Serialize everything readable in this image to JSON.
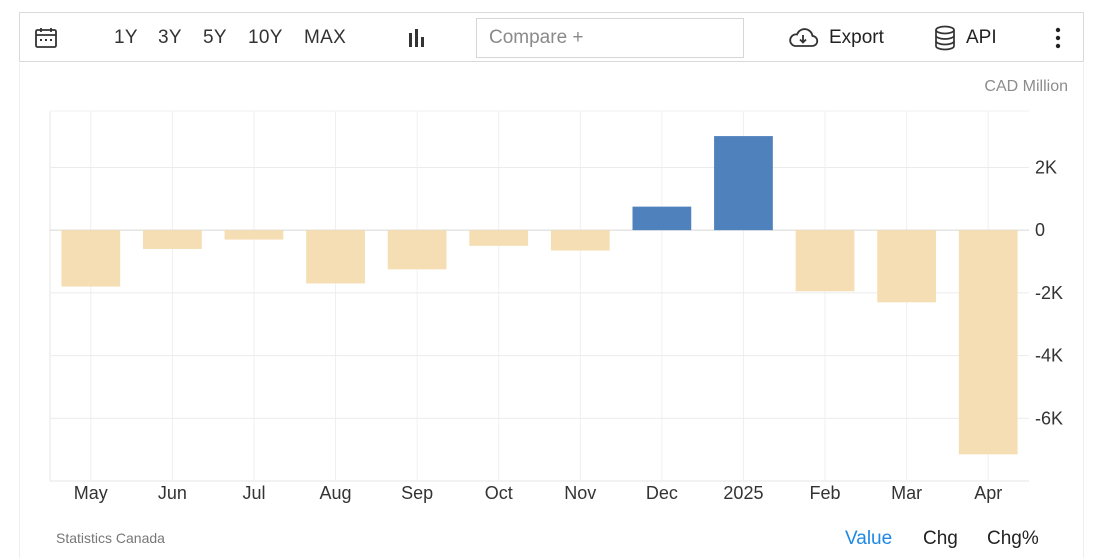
{
  "toolbar": {
    "ranges": [
      "1Y",
      "3Y",
      "5Y",
      "10Y",
      "MAX"
    ],
    "compare_placeholder": "Compare +",
    "export_label": "Export",
    "api_label": "API"
  },
  "unit_label": "CAD Million",
  "source_label": "Statistics Canada",
  "view_modes": [
    "Value",
    "Chg",
    "Chg%"
  ],
  "active_mode": "Value",
  "colors": {
    "positive": "#4f81bd",
    "negative": "#f5deb3",
    "active_mode": "#1e88e5"
  },
  "chart_data": {
    "type": "bar",
    "categories": [
      "May",
      "Jun",
      "Jul",
      "Aug",
      "Sep",
      "Oct",
      "Nov",
      "Dec",
      "2025",
      "Feb",
      "Mar",
      "Apr"
    ],
    "values": [
      -1800,
      -600,
      -300,
      -1700,
      -1250,
      -500,
      -650,
      750,
      3000,
      -1950,
      -2300,
      -7150
    ],
    "ylim": [
      -8000,
      3800
    ],
    "yticks": [
      2000,
      0,
      -2000,
      -4000,
      -6000
    ],
    "ytick_labels": [
      "2K",
      "0",
      "-2K",
      "-4K",
      "-6K"
    ],
    "axis_position": "right",
    "grid": true
  }
}
